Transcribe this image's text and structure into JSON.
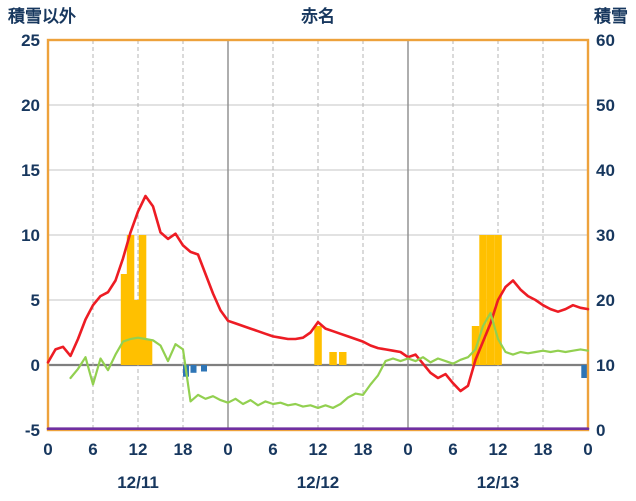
{
  "colors": {
    "text": "#17375E",
    "frame": "#EDA23C",
    "grid": "#C6C6C6",
    "grid_dashed": "#B4B4B4",
    "zero_line": "#7F7F7F",
    "day_line": "#8C8C8C",
    "temp_line": "#ED1C24",
    "green_line": "#92D050",
    "snow_line": "#7030A0",
    "precip_bar": "#FFC000",
    "blue_bar": "#2E75B6"
  },
  "chart_data": {
    "type": "line",
    "title": "赤名",
    "left_axis": {
      "label": "積雪以外",
      "min": -5,
      "max": 25,
      "ticks": [
        25,
        20,
        15,
        10,
        5,
        0,
        -5
      ]
    },
    "right_axis": {
      "label": "積雪",
      "min": 0,
      "max": 60,
      "ticks": [
        60,
        50,
        40,
        30,
        20,
        10,
        0
      ]
    },
    "x_axis": {
      "hours_total": 72,
      "tick_hours": [
        0,
        6,
        12,
        18,
        24,
        30,
        36,
        42,
        48,
        54,
        60,
        66,
        72
      ],
      "tick_labels": [
        "0",
        "6",
        "12",
        "18",
        "0",
        "6",
        "12",
        "18",
        "0",
        "6",
        "12",
        "18",
        "0"
      ],
      "day_lines": [
        24,
        48
      ],
      "dashed_lines": [
        6,
        12,
        18,
        30,
        36,
        42,
        54,
        60,
        66
      ],
      "day_labels": [
        {
          "label": "12/11",
          "hour": 12
        },
        {
          "label": "12/12",
          "hour": 36
        },
        {
          "label": "12/13",
          "hour": 60
        }
      ]
    },
    "series": [
      {
        "name": "temperature-red-line",
        "color_key": "temp_line",
        "width": 2.6,
        "axis": "left",
        "points": [
          [
            0,
            0.2
          ],
          [
            1,
            1.2
          ],
          [
            2,
            1.4
          ],
          [
            3,
            0.7
          ],
          [
            4,
            2.0
          ],
          [
            5,
            3.5
          ],
          [
            6,
            4.6
          ],
          [
            7,
            5.3
          ],
          [
            8,
            5.6
          ],
          [
            9,
            6.5
          ],
          [
            10,
            8.2
          ],
          [
            11,
            10.2
          ],
          [
            12,
            11.8
          ],
          [
            13,
            13.0
          ],
          [
            14,
            12.2
          ],
          [
            15,
            10.2
          ],
          [
            16,
            9.7
          ],
          [
            17,
            10.1
          ],
          [
            18,
            9.2
          ],
          [
            19,
            8.7
          ],
          [
            20,
            8.5
          ],
          [
            21,
            7.0
          ],
          [
            22,
            5.5
          ],
          [
            23,
            4.2
          ],
          [
            24,
            3.4
          ],
          [
            25,
            3.2
          ],
          [
            26,
            3.0
          ],
          [
            27,
            2.8
          ],
          [
            28,
            2.6
          ],
          [
            29,
            2.4
          ],
          [
            30,
            2.2
          ],
          [
            31,
            2.1
          ],
          [
            32,
            2.0
          ],
          [
            33,
            2.0
          ],
          [
            34,
            2.1
          ],
          [
            35,
            2.5
          ],
          [
            36,
            3.3
          ],
          [
            37,
            2.8
          ],
          [
            38,
            2.6
          ],
          [
            39,
            2.4
          ],
          [
            40,
            2.2
          ],
          [
            41,
            2.0
          ],
          [
            42,
            1.8
          ],
          [
            43,
            1.5
          ],
          [
            44,
            1.3
          ],
          [
            45,
            1.2
          ],
          [
            46,
            1.1
          ],
          [
            47,
            1.0
          ],
          [
            48,
            0.6
          ],
          [
            49,
            0.8
          ],
          [
            50,
            0.1
          ],
          [
            51,
            -0.6
          ],
          [
            52,
            -1.0
          ],
          [
            53,
            -0.7
          ],
          [
            54,
            -1.4
          ],
          [
            55,
            -2.0
          ],
          [
            56,
            -1.6
          ],
          [
            57,
            0.4
          ],
          [
            58,
            1.8
          ],
          [
            59,
            3.2
          ],
          [
            60,
            5.0
          ],
          [
            61,
            6.0
          ],
          [
            62,
            6.5
          ],
          [
            63,
            5.8
          ],
          [
            64,
            5.3
          ],
          [
            65,
            5.0
          ],
          [
            66,
            4.6
          ],
          [
            67,
            4.3
          ],
          [
            68,
            4.1
          ],
          [
            69,
            4.3
          ],
          [
            70,
            4.6
          ],
          [
            71,
            4.4
          ],
          [
            72,
            4.3
          ]
        ]
      },
      {
        "name": "green-line",
        "color_key": "green_line",
        "width": 2.2,
        "axis": "left",
        "points": [
          [
            3,
            -1.0
          ],
          [
            4,
            -0.3
          ],
          [
            5,
            0.6
          ],
          [
            6,
            -1.5
          ],
          [
            7,
            0.5
          ],
          [
            8,
            -0.4
          ],
          [
            9,
            0.8
          ],
          [
            10,
            1.8
          ],
          [
            11,
            2.0
          ],
          [
            12,
            2.1
          ],
          [
            13,
            2.0
          ],
          [
            14,
            1.9
          ],
          [
            15,
            1.5
          ],
          [
            16,
            0.3
          ],
          [
            17,
            1.6
          ],
          [
            18,
            1.2
          ],
          [
            19,
            -2.8
          ],
          [
            20,
            -2.3
          ],
          [
            21,
            -2.6
          ],
          [
            22,
            -2.4
          ],
          [
            23,
            -2.7
          ],
          [
            24,
            -2.9
          ],
          [
            25,
            -2.6
          ],
          [
            26,
            -3.0
          ],
          [
            27,
            -2.7
          ],
          [
            28,
            -3.1
          ],
          [
            29,
            -2.8
          ],
          [
            30,
            -3.0
          ],
          [
            31,
            -2.9
          ],
          [
            32,
            -3.1
          ],
          [
            33,
            -3.0
          ],
          [
            34,
            -3.2
          ],
          [
            35,
            -3.1
          ],
          [
            36,
            -3.3
          ],
          [
            37,
            -3.1
          ],
          [
            38,
            -3.3
          ],
          [
            39,
            -3.0
          ],
          [
            40,
            -2.5
          ],
          [
            41,
            -2.2
          ],
          [
            42,
            -2.3
          ],
          [
            43,
            -1.5
          ],
          [
            44,
            -0.8
          ],
          [
            45,
            0.3
          ],
          [
            46,
            0.5
          ],
          [
            47,
            0.3
          ],
          [
            48,
            0.5
          ],
          [
            49,
            0.3
          ],
          [
            50,
            0.6
          ],
          [
            51,
            0.2
          ],
          [
            52,
            0.5
          ],
          [
            53,
            0.3
          ],
          [
            54,
            0.1
          ],
          [
            55,
            0.4
          ],
          [
            56,
            0.6
          ],
          [
            57,
            1.2
          ],
          [
            58,
            3.0
          ],
          [
            59,
            4.0
          ],
          [
            60,
            2.0
          ],
          [
            61,
            1.0
          ],
          [
            62,
            0.8
          ],
          [
            63,
            1.0
          ],
          [
            64,
            0.9
          ],
          [
            65,
            1.0
          ],
          [
            66,
            1.1
          ],
          [
            67,
            1.0
          ],
          [
            68,
            1.1
          ],
          [
            69,
            1.0
          ],
          [
            70,
            1.1
          ],
          [
            71,
            1.2
          ],
          [
            72,
            1.1
          ]
        ]
      },
      {
        "name": "snow-depth-purple-line",
        "color_key": "snow_line",
        "width": 2.6,
        "axis": "left",
        "points": [
          [
            0,
            -4.9
          ],
          [
            72,
            -4.9
          ]
        ]
      }
    ],
    "bars": [
      {
        "name": "precipitation-orange-bars",
        "color_key": "precip_bar",
        "width_hours": 1.0,
        "points": [
          [
            10.2,
            7
          ],
          [
            11.0,
            10
          ],
          [
            11.8,
            5
          ],
          [
            12.6,
            10
          ],
          [
            13.4,
            2
          ],
          [
            36,
            3
          ],
          [
            38,
            1
          ],
          [
            39.3,
            1
          ],
          [
            57,
            3
          ],
          [
            58,
            10
          ],
          [
            59,
            10
          ],
          [
            60,
            10
          ]
        ]
      },
      {
        "name": "blue-bars",
        "color_key": "blue_bar",
        "width_hours": 0.8,
        "points": [
          [
            18.4,
            -0.9
          ],
          [
            19.4,
            -0.6
          ],
          [
            20.8,
            -0.5
          ],
          [
            71.5,
            -1.0
          ]
        ]
      }
    ]
  }
}
